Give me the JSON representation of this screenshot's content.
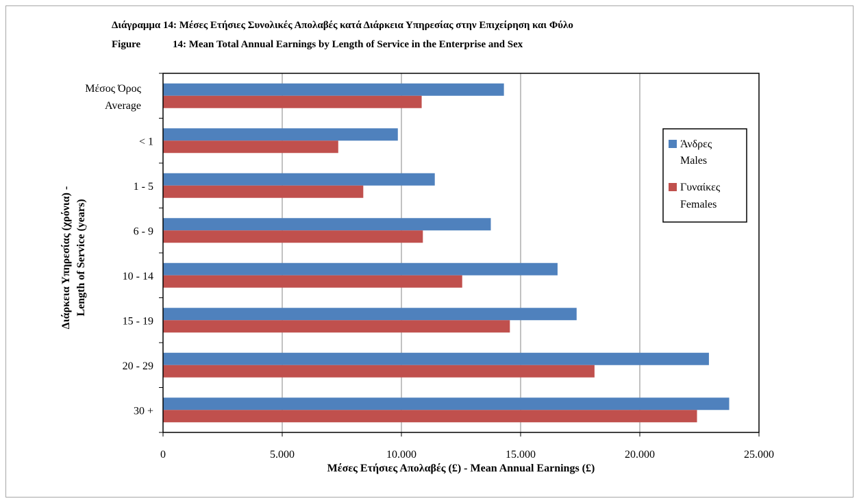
{
  "chart_data": {
    "type": "bar",
    "orientation": "horizontal",
    "title": "Διάγραμμα 14: Μέσες Ετήσιες Συνολικές Απολαβές κατά Διάρκεια Υπηρεσίας στην Επιχείρηση και Φύλο",
    "subtitle_prefix": "Figure",
    "subtitle": "14: Mean Total Annual Earnings by Length of Service in the Enterprise and Sex",
    "xlabel": "Μέσες Ετήσιες Απολαβές (£) - Mean Annual Earnings (£)",
    "ylabel_line1": "Διάρκεια Υπηρεσίας (χρόνια) -",
    "ylabel_line2": "Length of Service (years)",
    "categories": [
      {
        "line1": "Μέσος Όρος",
        "line2": "Average"
      },
      {
        "line1": "< 1",
        "line2": ""
      },
      {
        "line1": "1 - 5",
        "line2": ""
      },
      {
        "line1": "6 - 9",
        "line2": ""
      },
      {
        "line1": "10 - 14",
        "line2": ""
      },
      {
        "line1": "15 - 19",
        "line2": ""
      },
      {
        "line1": "20 - 29",
        "line2": ""
      },
      {
        "line1": "30 +",
        "line2": ""
      }
    ],
    "series": [
      {
        "name_line1": "Άνδρες",
        "name_line2": "Males",
        "color": "#4f81bd",
        "values": [
          14300,
          9850,
          11400,
          13750,
          16550,
          17350,
          22900,
          23750
        ]
      },
      {
        "name_line1": "Γυναίκες",
        "name_line2": "Females",
        "color": "#c0504d",
        "values": [
          10850,
          7350,
          8400,
          10900,
          12550,
          14550,
          18100,
          22400
        ]
      }
    ],
    "x_ticks": [
      "0",
      "5.000",
      "10.000",
      "15.000",
      "20.000",
      "25.000"
    ],
    "xlim": [
      0,
      25000
    ],
    "grid": "vertical",
    "legend_position": "right"
  }
}
